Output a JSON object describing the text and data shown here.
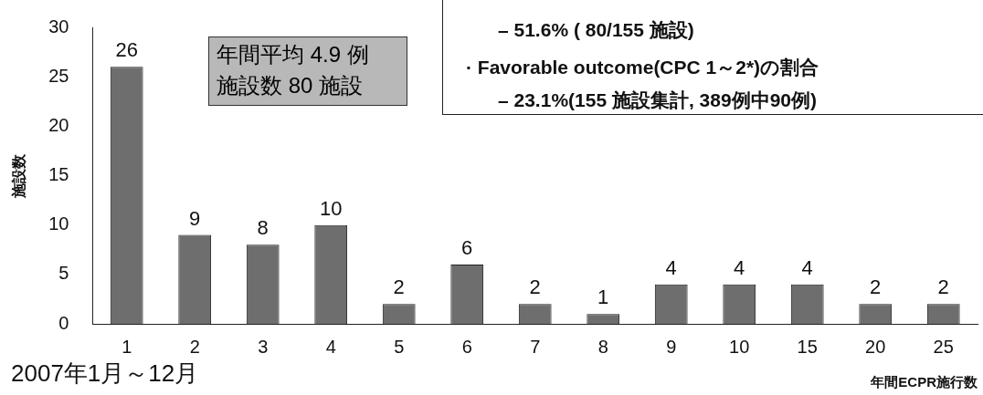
{
  "chart_data": {
    "type": "bar",
    "xlabel": "年間ECPR施行数",
    "ylabel": "施設数",
    "categories": [
      "1",
      "2",
      "3",
      "4",
      "5",
      "6",
      "7",
      "8",
      "9",
      "10",
      "15",
      "20",
      "25"
    ],
    "values": [
      26,
      9,
      8,
      10,
      2,
      6,
      2,
      1,
      4,
      4,
      4,
      2,
      2
    ],
    "color": "#6e6e6e",
    "ylim": [
      0,
      30
    ],
    "yticks": [
      0,
      5,
      10,
      15,
      20,
      25,
      30
    ],
    "grid": false,
    "data_labels": true,
    "legend": false,
    "annotations": [
      "年間平均 4.9 例",
      "施設数 80 施設",
      "– 51.6% ( 80/155 施設)",
      "· Favorable outcome(CPC 1～2*)の割合",
      "– 23.1%(155 施設集計, 389例中90例)",
      "2007年1月～12月"
    ]
  }
}
